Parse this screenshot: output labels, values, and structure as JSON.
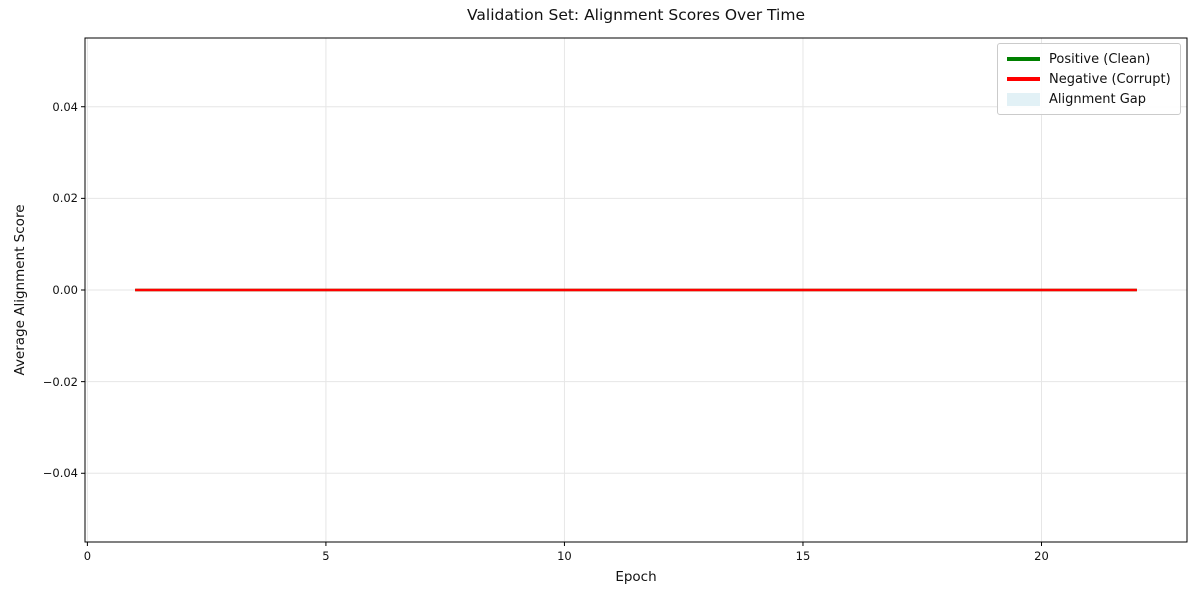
{
  "figure": {
    "background": "#ffffff",
    "grid_color": "#e6e6e6",
    "spine_color": "#000000"
  },
  "chart_data": {
    "type": "line",
    "title": "Validation Set: Alignment Scores Over Time",
    "xlabel": "Epoch",
    "ylabel": "Average Alignment Score",
    "xlim": [
      -0.05,
      23.05
    ],
    "ylim": [
      -0.055,
      0.055
    ],
    "grid": true,
    "legend_position": "upper right",
    "xticks": [
      {
        "value": 0,
        "label": "0"
      },
      {
        "value": 5,
        "label": "5"
      },
      {
        "value": 10,
        "label": "10"
      },
      {
        "value": 15,
        "label": "15"
      },
      {
        "value": 20,
        "label": "20"
      }
    ],
    "yticks": [
      {
        "value": -0.04,
        "label": "−0.04"
      },
      {
        "value": -0.02,
        "label": "−0.02"
      },
      {
        "value": 0.0,
        "label": "0.00"
      },
      {
        "value": 0.02,
        "label": "0.02"
      },
      {
        "value": 0.04,
        "label": "0.04"
      }
    ],
    "series": [
      {
        "name": "Positive (Clean)",
        "color": "#008000",
        "linewidth": 2.5,
        "x": [
          1,
          2,
          3,
          4,
          5,
          6,
          7,
          8,
          9,
          10,
          11,
          12,
          13,
          14,
          15,
          16,
          17,
          18,
          19,
          20,
          21,
          22
        ],
        "y": [
          0,
          0,
          0,
          0,
          0,
          0,
          0,
          0,
          0,
          0,
          0,
          0,
          0,
          0,
          0,
          0,
          0,
          0,
          0,
          0,
          0,
          0
        ]
      },
      {
        "name": "Negative (Corrupt)",
        "color": "#ff0000",
        "linewidth": 2.5,
        "x": [
          1,
          2,
          3,
          4,
          5,
          6,
          7,
          8,
          9,
          10,
          11,
          12,
          13,
          14,
          15,
          16,
          17,
          18,
          19,
          20,
          21,
          22
        ],
        "y": [
          0,
          0,
          0,
          0,
          0,
          0,
          0,
          0,
          0,
          0,
          0,
          0,
          0,
          0,
          0,
          0,
          0,
          0,
          0,
          0,
          0,
          0
        ]
      }
    ],
    "legend": [
      {
        "label": "Positive (Clean)",
        "swatch": "line",
        "color": "#008000"
      },
      {
        "label": "Negative (Corrupt)",
        "swatch": "line",
        "color": "#ff0000"
      },
      {
        "label": "Alignment Gap",
        "swatch": "patch",
        "color": "rgba(173,216,230,0.35)"
      }
    ]
  }
}
